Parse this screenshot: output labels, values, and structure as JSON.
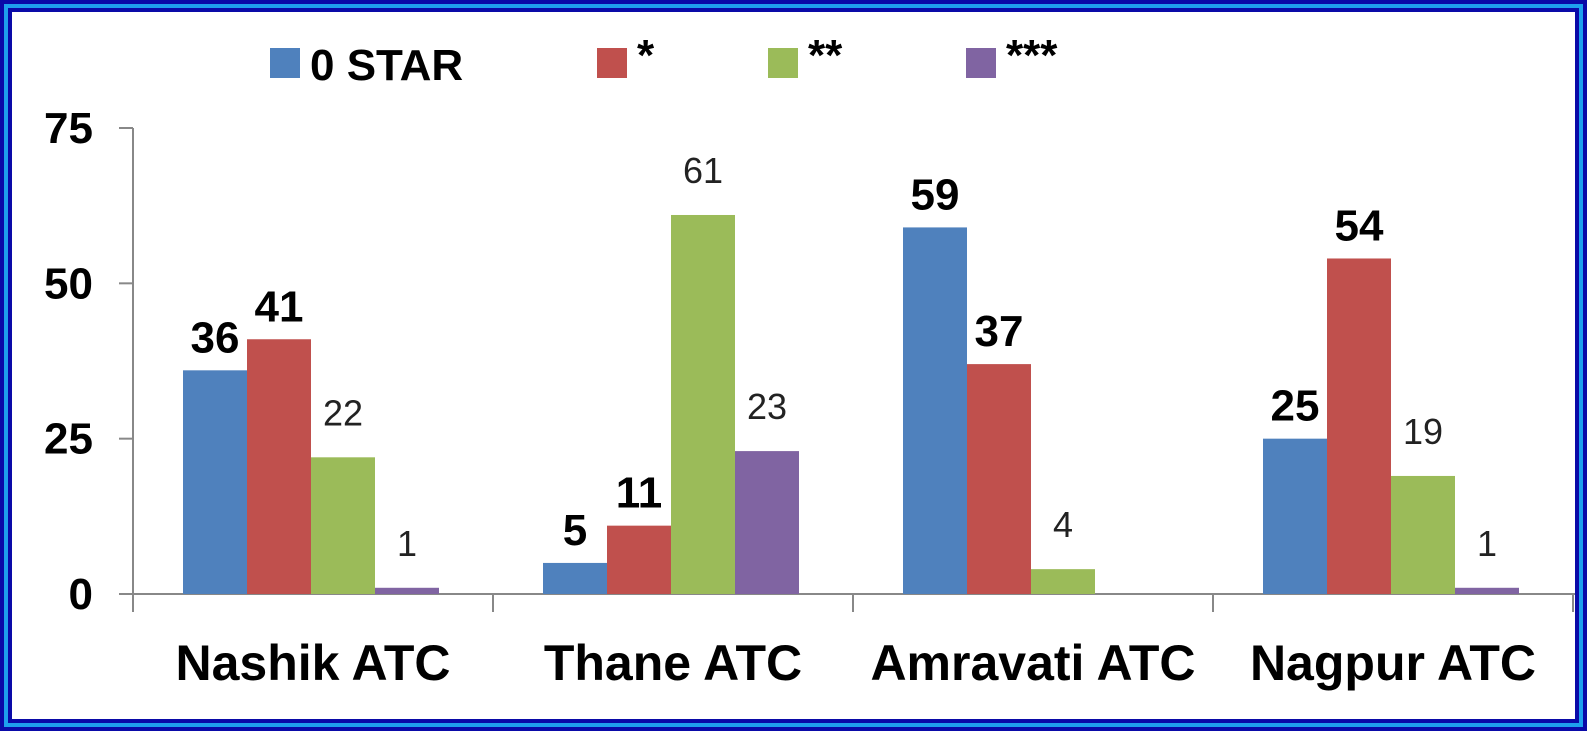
{
  "chart_data": {
    "type": "bar",
    "categories": [
      "Nashik ATC",
      "Thane ATC",
      "Amravati ATC",
      "Nagpur ATC"
    ],
    "series": [
      {
        "name": "0 STAR",
        "color": "#4f81bd",
        "values": [
          36,
          5,
          59,
          25
        ]
      },
      {
        "name": "*",
        "color": "#c0504d",
        "values": [
          41,
          11,
          37,
          54
        ]
      },
      {
        "name": "**",
        "color": "#9bbb59",
        "values": [
          22,
          61,
          4,
          19
        ]
      },
      {
        "name": "***",
        "color": "#8064a2",
        "values": [
          1,
          23,
          0,
          1
        ]
      }
    ],
    "data_labels": [
      [
        "36",
        "5",
        "59",
        "25"
      ],
      [
        "41",
        "11",
        "37",
        "54"
      ],
      [
        "22",
        "61",
        "4",
        "19"
      ],
      [
        "1",
        "23",
        "",
        "1"
      ]
    ],
    "label_bold": [
      true,
      true,
      false,
      false
    ],
    "ylim": [
      0,
      75
    ],
    "yticks": [
      "0",
      "25",
      "50",
      "75"
    ],
    "legend_position": "top",
    "grid": false,
    "title": "",
    "xlabel": "",
    "ylabel": ""
  }
}
